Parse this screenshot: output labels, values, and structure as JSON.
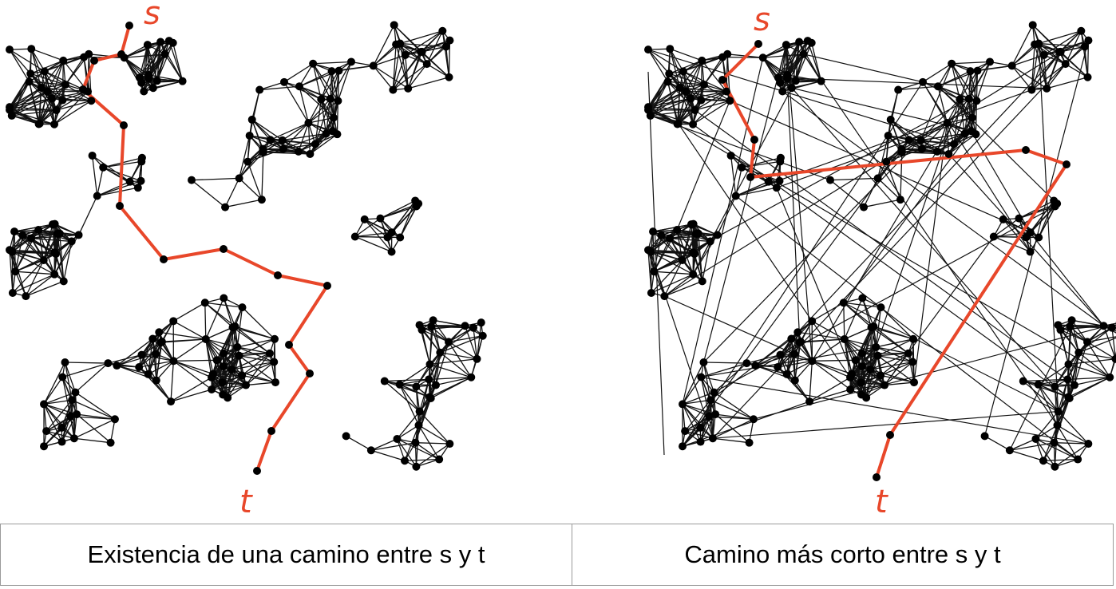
{
  "panels": [
    {
      "source_label": "s",
      "target_label": "t",
      "caption": "Existencia de una camino entre s y t"
    },
    {
      "source_label": "s",
      "target_label": "t",
      "caption": "Camino más corto entre s y t"
    }
  ],
  "colors": {
    "edge": "#111111",
    "node": "#000000",
    "path": "#e8472a",
    "label": "#e8472a",
    "border": "#9a9a9a"
  }
}
